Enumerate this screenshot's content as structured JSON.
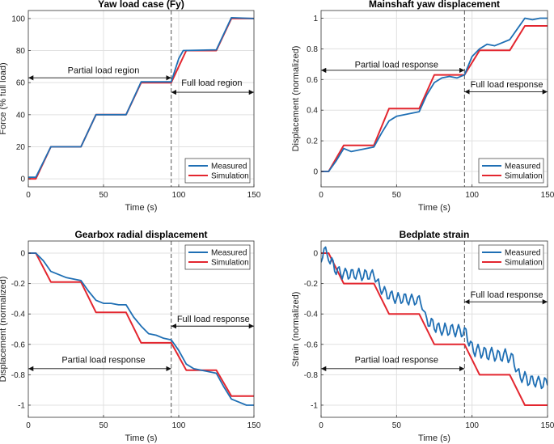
{
  "chart_data": [
    {
      "type": "line",
      "title": "Yaw load case (Fy)",
      "xlabel": "Time (s)",
      "ylabel": "Force (% full load)",
      "xlim": [
        0,
        150
      ],
      "ylim": [
        -5,
        105
      ],
      "xticks": [
        0,
        50,
        100,
        150
      ],
      "yticks": [
        0,
        20,
        40,
        60,
        80,
        100
      ],
      "ytick_labels": [
        "0",
        "20",
        "40",
        "60",
        "80",
        "100"
      ],
      "grid": true,
      "legend": {
        "position": "bottom-right",
        "entries": [
          "Measured",
          "Simulation"
        ]
      },
      "vline_x": 95,
      "annotations": [
        {
          "text": "Partial load region",
          "arrow_y": 63,
          "x_from": 0,
          "x_to": 95,
          "text_x": 50,
          "text_y": 68
        },
        {
          "text": "Full load region",
          "arrow_y": 54,
          "x_from": 95,
          "x_to": 150,
          "text_x": 122,
          "text_y": 60
        }
      ],
      "series": [
        {
          "name": "Measured",
          "color": "#1f6fb4",
          "x": [
            0,
            5,
            15,
            35,
            45,
            65,
            75,
            95,
            100,
            103,
            125,
            135,
            150
          ],
          "y": [
            1,
            1,
            20,
            20,
            40,
            40,
            60.5,
            60.5,
            75,
            80,
            80.5,
            100.5,
            100
          ]
        },
        {
          "name": "Simulation",
          "color": "#e3262f",
          "x": [
            0,
            5,
            15,
            35,
            45,
            65,
            75,
            95,
            105,
            125,
            135,
            150
          ],
          "y": [
            0,
            0,
            20,
            20,
            40,
            40,
            60,
            60,
            80,
            80,
            100,
            100
          ]
        }
      ]
    },
    {
      "type": "line",
      "title": "Mainshaft yaw displacement",
      "xlabel": "Time (s)",
      "ylabel": "Displacement (normalized)",
      "xlim": [
        0,
        150
      ],
      "ylim": [
        -0.1,
        1.05
      ],
      "xticks": [
        0,
        50,
        100,
        150
      ],
      "yticks": [
        0,
        0.2,
        0.4,
        0.6,
        0.8,
        1
      ],
      "ytick_labels": [
        "0",
        "0.2",
        "0.4",
        "0.6",
        "0.8",
        "1"
      ],
      "grid": true,
      "legend": {
        "position": "bottom-right",
        "entries": [
          "Measured",
          "Simulation"
        ]
      },
      "vline_x": 95,
      "annotations": [
        {
          "text": "Partial load response",
          "arrow_y": 0.66,
          "x_from": 0,
          "x_to": 95,
          "text_x": 50,
          "text_y": 0.7
        },
        {
          "text": "Full load response",
          "arrow_y": 0.52,
          "x_from": 95,
          "x_to": 150,
          "text_x": 123,
          "text_y": 0.57
        }
      ],
      "series": [
        {
          "name": "Measured",
          "color": "#1f6fb4",
          "x": [
            0,
            5,
            10,
            15,
            20,
            25,
            30,
            35,
            40,
            45,
            50,
            55,
            60,
            65,
            70,
            75,
            80,
            85,
            90,
            95,
            100,
            105,
            110,
            115,
            120,
            125,
            130,
            135,
            140,
            145,
            150
          ],
          "y": [
            0,
            0,
            0.07,
            0.15,
            0.13,
            0.14,
            0.15,
            0.16,
            0.25,
            0.33,
            0.36,
            0.37,
            0.38,
            0.39,
            0.5,
            0.58,
            0.61,
            0.62,
            0.61,
            0.63,
            0.75,
            0.8,
            0.83,
            0.82,
            0.84,
            0.86,
            0.93,
            1.0,
            0.99,
            1.0,
            1.0
          ]
        },
        {
          "name": "Simulation",
          "color": "#e3262f",
          "x": [
            0,
            5,
            15,
            35,
            45,
            65,
            75,
            95,
            105,
            125,
            135,
            150
          ],
          "y": [
            0,
            0,
            0.17,
            0.17,
            0.41,
            0.41,
            0.63,
            0.63,
            0.79,
            0.79,
            0.95,
            0.95
          ]
        }
      ]
    },
    {
      "type": "line",
      "title": "Gearbox radial displacement",
      "xlabel": "Time (s)",
      "ylabel": "Displacement (normalized)",
      "xlim": [
        0,
        150
      ],
      "ylim": [
        -1.08,
        0.08
      ],
      "xticks": [
        0,
        50,
        100,
        150
      ],
      "yticks": [
        0,
        -0.2,
        -0.4,
        -0.6,
        -0.8,
        -1
      ],
      "ytick_labels": [
        "0",
        "-0.2",
        "-0.4",
        "-0.6",
        "-0.8",
        "-1"
      ],
      "grid": true,
      "legend": {
        "position": "top-right",
        "entries": [
          "Measured",
          "Simulation"
        ]
      },
      "vline_x": 95,
      "annotations": [
        {
          "text": "Full load response",
          "arrow_y": -0.48,
          "x_from": 95,
          "x_to": 150,
          "text_x": 123,
          "text_y": -0.43
        },
        {
          "text": "Partial load response",
          "arrow_y": -0.76,
          "x_from": 0,
          "x_to": 95,
          "text_x": 50,
          "text_y": -0.7
        }
      ],
      "series": [
        {
          "name": "Measured",
          "color": "#1f6fb4",
          "x": [
            0,
            5,
            10,
            15,
            20,
            25,
            30,
            35,
            40,
            45,
            50,
            55,
            60,
            65,
            70,
            75,
            80,
            85,
            90,
            95,
            100,
            105,
            110,
            115,
            120,
            125,
            130,
            135,
            140,
            145,
            150
          ],
          "y": [
            0,
            0,
            -0.05,
            -0.12,
            -0.14,
            -0.16,
            -0.17,
            -0.18,
            -0.25,
            -0.31,
            -0.33,
            -0.33,
            -0.34,
            -0.34,
            -0.42,
            -0.48,
            -0.53,
            -0.54,
            -0.56,
            -0.57,
            -0.64,
            -0.73,
            -0.76,
            -0.77,
            -0.78,
            -0.79,
            -0.88,
            -0.96,
            -0.98,
            -1.0,
            -1.0
          ]
        },
        {
          "name": "Simulation",
          "color": "#e3262f",
          "x": [
            0,
            5,
            15,
            35,
            45,
            65,
            75,
            95,
            105,
            125,
            135,
            150
          ],
          "y": [
            0,
            0,
            -0.19,
            -0.19,
            -0.39,
            -0.39,
            -0.59,
            -0.59,
            -0.77,
            -0.77,
            -0.94,
            -0.94
          ]
        }
      ]
    },
    {
      "type": "line",
      "title": "Bedplate strain",
      "xlabel": "Time (s)",
      "ylabel": "Strain (normalized)",
      "xlim": [
        0,
        150
      ],
      "ylim": [
        -1.08,
        0.08
      ],
      "xticks": [
        0,
        50,
        100,
        150
      ],
      "yticks": [
        0,
        -0.2,
        -0.4,
        -0.6,
        -0.8,
        -1
      ],
      "ytick_labels": [
        "0",
        "-0.2",
        "-0.4",
        "-0.6",
        "-0.8",
        "-1"
      ],
      "grid": true,
      "legend": {
        "position": "top-right",
        "entries": [
          "Measured",
          "Simulation"
        ]
      },
      "vline_x": 95,
      "annotations": [
        {
          "text": "Full load response",
          "arrow_y": -0.32,
          "x_from": 95,
          "x_to": 150,
          "text_x": 123,
          "text_y": -0.27
        },
        {
          "text": "Partial load response",
          "arrow_y": -0.76,
          "x_from": 0,
          "x_to": 95,
          "text_x": 50,
          "text_y": -0.7
        }
      ],
      "series": [
        {
          "name": "Measured",
          "color": "#1f6fb4",
          "x": [
            0,
            1,
            2,
            3,
            4,
            5,
            6,
            7,
            8,
            9,
            10,
            11,
            12,
            13,
            14,
            15,
            16,
            17,
            18,
            19,
            20,
            21,
            22,
            23,
            24,
            25,
            26,
            27,
            28,
            29,
            30,
            31,
            32,
            33,
            34,
            35,
            36,
            37,
            38,
            39,
            40,
            41,
            42,
            43,
            44,
            45,
            46,
            47,
            48,
            49,
            50,
            51,
            52,
            53,
            54,
            55,
            56,
            57,
            58,
            59,
            60,
            61,
            62,
            63,
            64,
            65,
            66,
            67,
            68,
            69,
            70,
            71,
            72,
            73,
            74,
            75,
            76,
            77,
            78,
            79,
            80,
            81,
            82,
            83,
            84,
            85,
            86,
            87,
            88,
            89,
            90,
            91,
            92,
            93,
            94,
            95,
            96,
            97,
            98,
            99,
            100,
            101,
            102,
            103,
            104,
            105,
            106,
            107,
            108,
            109,
            110,
            111,
            112,
            113,
            114,
            115,
            116,
            117,
            118,
            119,
            120,
            121,
            122,
            123,
            124,
            125,
            126,
            127,
            128,
            129,
            130,
            131,
            132,
            133,
            134,
            135,
            136,
            137,
            138,
            139,
            140,
            141,
            142,
            143,
            144,
            145,
            146,
            147,
            148,
            149,
            150
          ],
          "y": [
            -0.06,
            -0.03,
            0.03,
            0.04,
            -0.01,
            -0.05,
            -0.07,
            -0.03,
            -0.05,
            -0.12,
            -0.14,
            -0.1,
            -0.09,
            -0.14,
            -0.17,
            -0.13,
            -0.1,
            -0.12,
            -0.17,
            -0.16,
            -0.11,
            -0.11,
            -0.16,
            -0.17,
            -0.13,
            -0.1,
            -0.14,
            -0.18,
            -0.16,
            -0.11,
            -0.12,
            -0.17,
            -0.17,
            -0.13,
            -0.11,
            -0.15,
            -0.19,
            -0.18,
            -0.17,
            -0.23,
            -0.27,
            -0.25,
            -0.22,
            -0.25,
            -0.3,
            -0.3,
            -0.26,
            -0.25,
            -0.3,
            -0.33,
            -0.3,
            -0.26,
            -0.29,
            -0.33,
            -0.32,
            -0.27,
            -0.27,
            -0.32,
            -0.34,
            -0.3,
            -0.27,
            -0.3,
            -0.34,
            -0.33,
            -0.29,
            -0.28,
            -0.33,
            -0.37,
            -0.38,
            -0.39,
            -0.43,
            -0.48,
            -0.48,
            -0.43,
            -0.44,
            -0.5,
            -0.52,
            -0.47,
            -0.46,
            -0.51,
            -0.54,
            -0.51,
            -0.46,
            -0.49,
            -0.54,
            -0.53,
            -0.48,
            -0.47,
            -0.52,
            -0.55,
            -0.51,
            -0.47,
            -0.5,
            -0.55,
            -0.54,
            -0.49,
            -0.5,
            -0.58,
            -0.61,
            -0.58,
            -0.59,
            -0.65,
            -0.68,
            -0.63,
            -0.6,
            -0.64,
            -0.69,
            -0.67,
            -0.62,
            -0.63,
            -0.69,
            -0.7,
            -0.65,
            -0.62,
            -0.66,
            -0.71,
            -0.69,
            -0.64,
            -0.65,
            -0.7,
            -0.71,
            -0.66,
            -0.63,
            -0.67,
            -0.72,
            -0.7,
            -0.66,
            -0.67,
            -0.74,
            -0.78,
            -0.77,
            -0.76,
            -0.82,
            -0.85,
            -0.82,
            -0.78,
            -0.81,
            -0.87,
            -0.86,
            -0.81,
            -0.81,
            -0.86,
            -0.88,
            -0.84,
            -0.81,
            -0.84,
            -0.89,
            -0.88,
            -0.82,
            -0.83,
            -0.87
          ]
        },
        {
          "name": "Simulation",
          "color": "#e3262f",
          "x": [
            0,
            5,
            15,
            35,
            45,
            65,
            75,
            95,
            105,
            125,
            135,
            150
          ],
          "y": [
            0,
            0,
            -0.2,
            -0.2,
            -0.4,
            -0.4,
            -0.6,
            -0.6,
            -0.8,
            -0.8,
            -1.0,
            -1.0
          ]
        }
      ]
    }
  ]
}
